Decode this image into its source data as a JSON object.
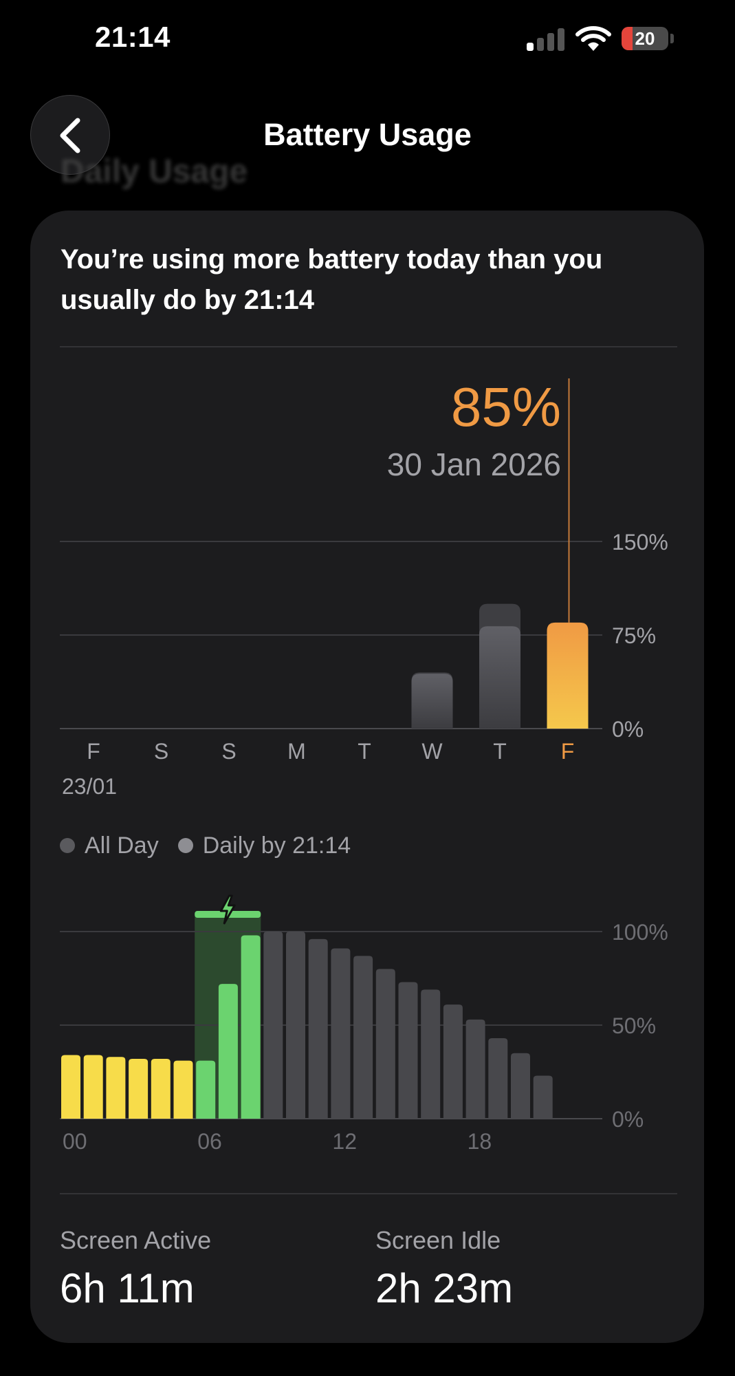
{
  "status_bar": {
    "time": "21:14",
    "battery_level": "20",
    "signal_bars_active": 1,
    "icons": [
      "cellular-signal-icon",
      "wifi-icon",
      "battery-icon"
    ]
  },
  "nav": {
    "title": "Battery Usage",
    "back_icon": "chevron-left-icon",
    "ghost_heading": "Daily Usage"
  },
  "card": {
    "message": "You’re using more battery today than you usually do by 21:14",
    "selected": {
      "value": "85%",
      "date": "30 Jan 2026"
    }
  },
  "legend": {
    "items": [
      {
        "label": "All Day",
        "color": "#5a5a5e"
      },
      {
        "label": "Daily by 21:14",
        "color": "#8e8e93"
      }
    ]
  },
  "stats": {
    "screen_active": {
      "label": "Screen Active",
      "value": "6h 11m"
    },
    "screen_idle": {
      "label": "Screen Idle",
      "value": "2h 23m"
    }
  },
  "colors": {
    "accent_orange": "#f09a44",
    "battery_yellow": "#f7dc4a",
    "charging_green": "#6bd36f",
    "bar_gray": "#48484c"
  },
  "chart_data": [
    {
      "type": "bar",
      "categories": [
        "F",
        "S",
        "S",
        "M",
        "T",
        "W",
        "T",
        "F"
      ],
      "first_date_label": "23/01",
      "selected_index": 7,
      "series": [
        {
          "name": "All Day",
          "values": [
            0,
            0,
            0,
            0,
            0,
            45,
            100,
            85
          ]
        },
        {
          "name": "Daily by 21:14",
          "values": [
            0,
            0,
            0,
            0,
            0,
            44,
            82,
            85
          ]
        }
      ],
      "y_ticks": [
        "0%",
        "75%",
        "150%"
      ],
      "ylim": [
        0,
        150
      ],
      "grid": true
    },
    {
      "type": "bar",
      "x_tick_labels": [
        "00",
        "06",
        "12",
        "18"
      ],
      "y_ticks": [
        "0%",
        "50%",
        "100%"
      ],
      "ylim": [
        0,
        100
      ],
      "values": [
        34,
        34,
        33,
        32,
        32,
        31,
        31,
        72,
        98,
        100,
        100,
        96,
        91,
        87,
        80,
        73,
        69,
        61,
        53,
        43,
        35,
        23
      ],
      "charging_segments": [
        6,
        7,
        8
      ],
      "charging_band": {
        "from_hour": 6,
        "to_hour": 9
      },
      "grid": true
    }
  ]
}
